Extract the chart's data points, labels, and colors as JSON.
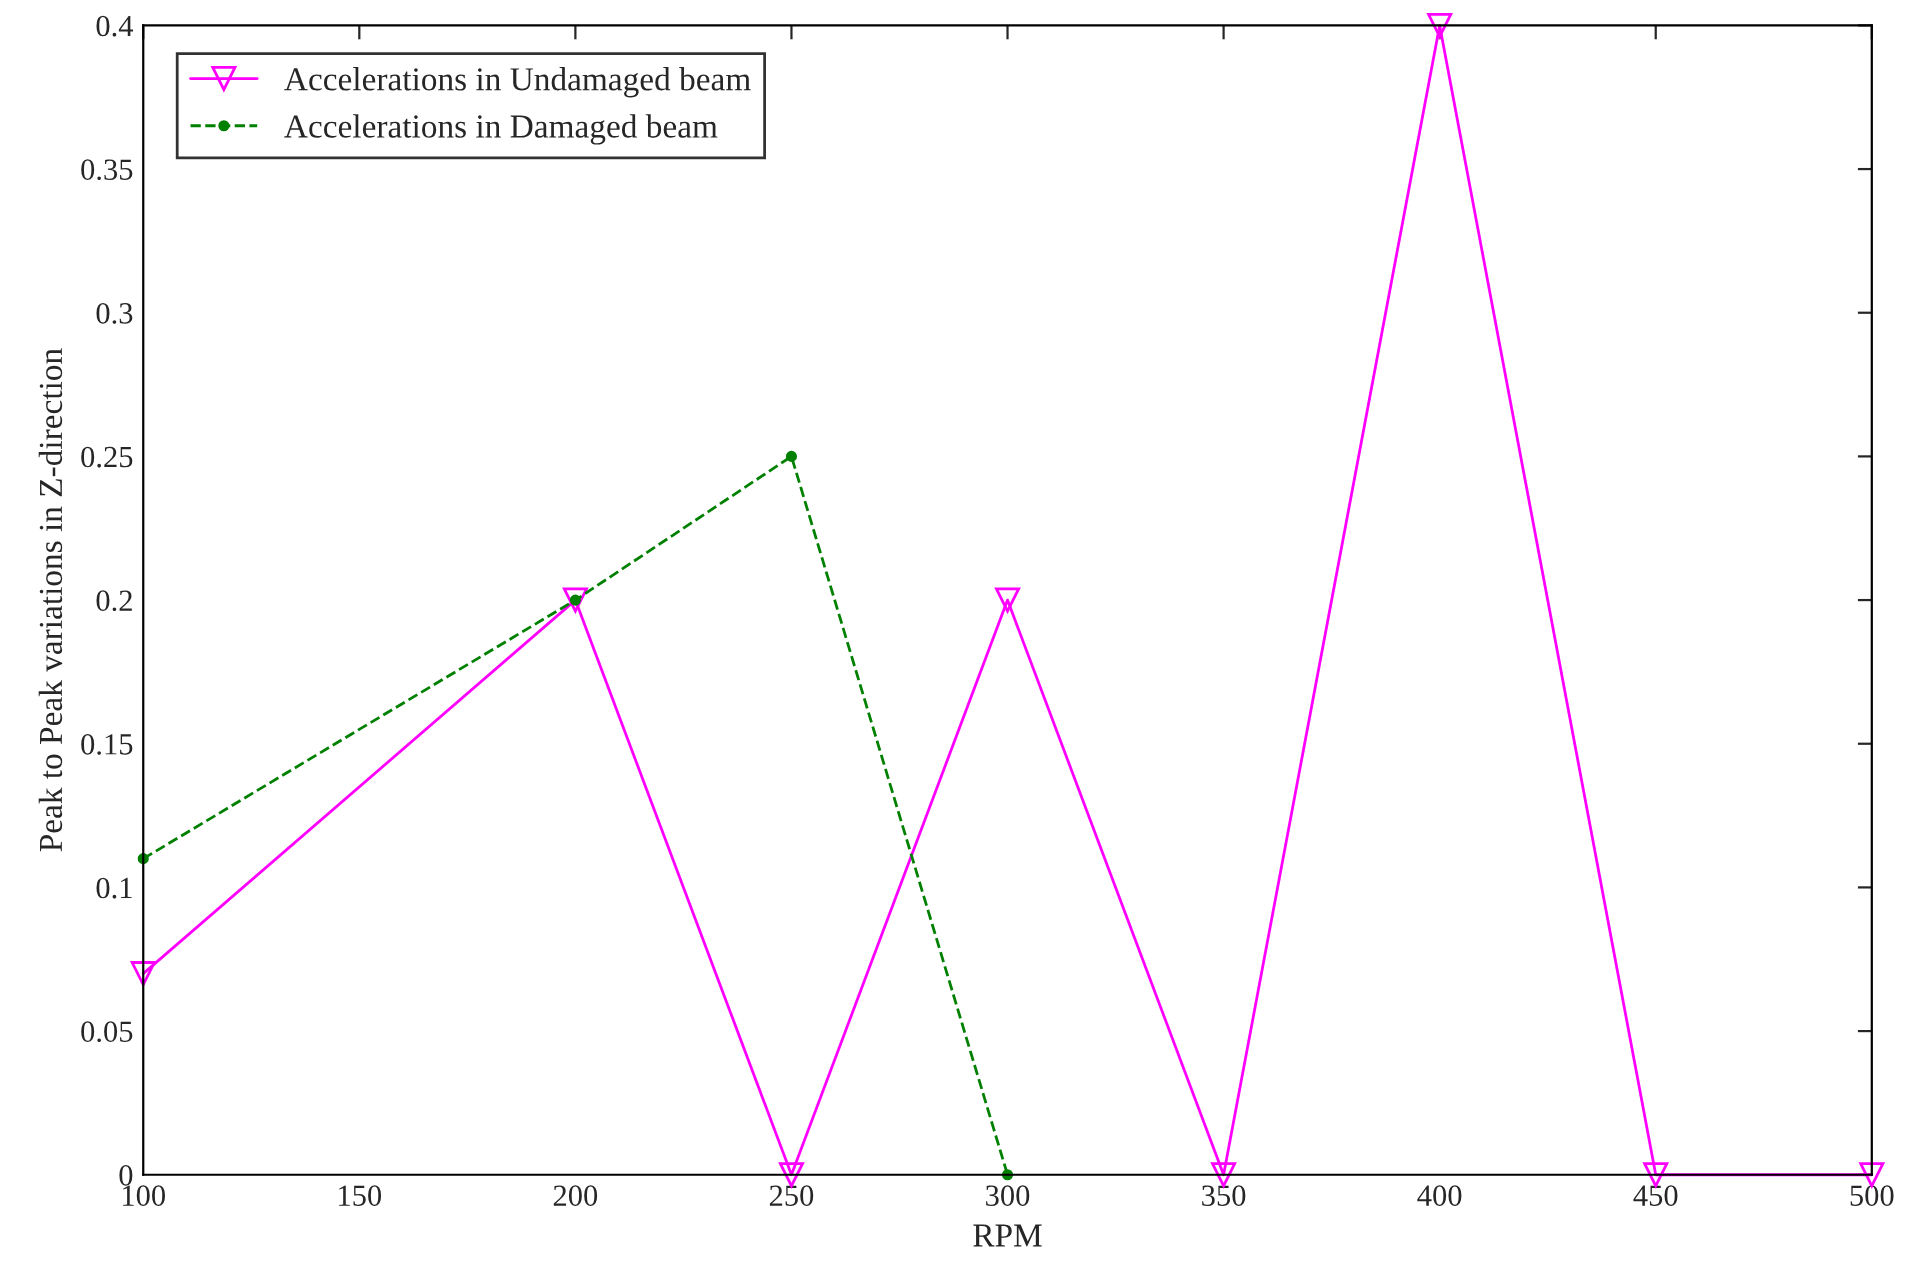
{
  "chart_data": {
    "type": "line",
    "xlabel": "RPM",
    "ylabel": "Peak to Peak variations in Z-direction",
    "x": [
      100,
      200,
      250,
      300,
      350,
      400,
      450,
      500
    ],
    "series": [
      {
        "name": "Accelerations in Undamaged beam",
        "color": "#ff00ff",
        "marker": "triangle",
        "line_style": "solid",
        "values": [
          0.07,
          0.2,
          0,
          0.2,
          0,
          0.4,
          0,
          0
        ]
      },
      {
        "name": "Accelerations in Damaged beam",
        "color": "#008000",
        "marker": "circle",
        "line_style": "dashed",
        "x": [
          100,
          200,
          250,
          300
        ],
        "values": [
          0.11,
          0.2,
          0.25,
          0
        ]
      }
    ],
    "xlim": [
      100,
      500
    ],
    "ylim": [
      0,
      0.4
    ],
    "xticks": [
      100,
      150,
      200,
      250,
      300,
      350,
      400,
      450,
      500
    ],
    "yticks": [
      0,
      0.05,
      0.1,
      0.15,
      0.2,
      0.25,
      0.3,
      0.35,
      0.4
    ],
    "grid": false,
    "legend": "top left"
  }
}
